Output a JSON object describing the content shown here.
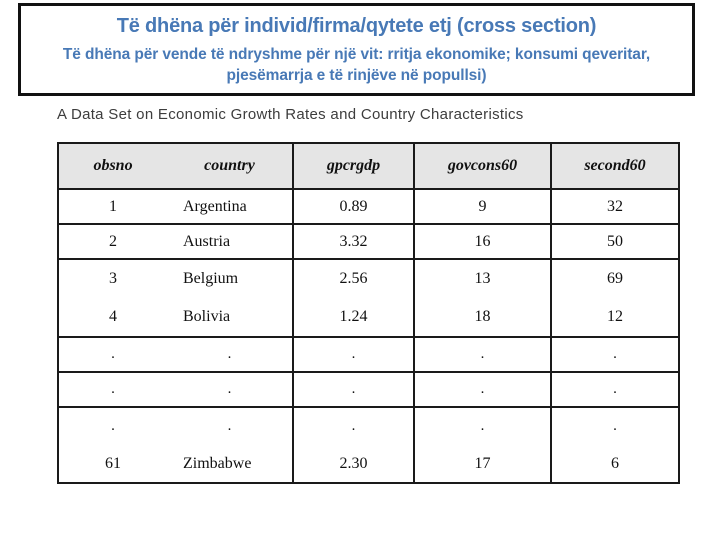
{
  "colors": {
    "accent_blue": "#4879b6",
    "box_border": "#111111",
    "table_line": "#1a1a1a",
    "header_bg": "#e5e5e5"
  },
  "header": {
    "title": "Të dhëna për individ/firma/qytete etj (cross section)",
    "subtitle_lines": [
      "Të dhëna për vende të ndryshme për një vit: rritja ekonomike; konsumi qeveritar,",
      "pjesëmarrja e të rinjëve në popullsi)"
    ]
  },
  "table": {
    "caption": "A Data Set on Economic Growth Rates and Country Characteristics",
    "columns": [
      "obsno",
      "country",
      "gpcrgdp",
      "govcons60",
      "second60"
    ],
    "rows": [
      {
        "obsno": "1",
        "country": "Argentina",
        "gpcrgdp": "0.89",
        "govcons60": "9",
        "second60": "32"
      },
      {
        "obsno": "2",
        "country": "Austria",
        "gpcrgdp": "3.32",
        "govcons60": "16",
        "second60": "50"
      },
      {
        "obsno": "3",
        "country": "Belgium",
        "gpcrgdp": "2.56",
        "govcons60": "13",
        "second60": "69"
      },
      {
        "obsno": "4",
        "country": "Bolivia",
        "gpcrgdp": "1.24",
        "govcons60": "18",
        "second60": "12"
      },
      {
        "obsno": ".",
        "country": ".",
        "gpcrgdp": ".",
        "govcons60": ".",
        "second60": "."
      },
      {
        "obsno": ".",
        "country": ".",
        "gpcrgdp": ".",
        "govcons60": ".",
        "second60": "."
      },
      {
        "obsno": ".",
        "country": ".",
        "gpcrgdp": ".",
        "govcons60": ".",
        "second60": "."
      },
      {
        "obsno": "61",
        "country": "Zimbabwe",
        "gpcrgdp": "2.30",
        "govcons60": "17",
        "second60": "6"
      }
    ]
  }
}
